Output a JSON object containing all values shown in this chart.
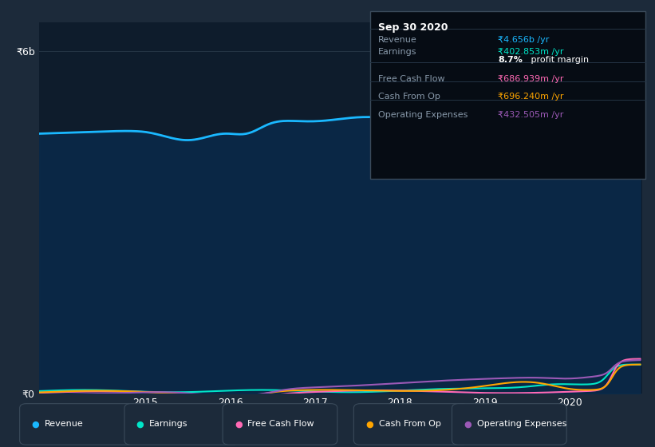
{
  "fig_bg_color": "#1c2a3a",
  "plot_bg_color": "#0e1c2c",
  "ylim": [
    0,
    6500000000
  ],
  "xlim_left": 2013.75,
  "xlim_right": 2020.85,
  "ytick_positions": [
    0,
    6000000000
  ],
  "ytick_labels": [
    "₹0",
    "₹6b"
  ],
  "xtick_positions": [
    2015,
    2016,
    2017,
    2018,
    2019,
    2020
  ],
  "xtick_labels": [
    "2015",
    "2016",
    "2017",
    "2018",
    "2019",
    "2020"
  ],
  "grid_color": "#243444",
  "revenue_color": "#1ab8ff",
  "earnings_color": "#00e5c8",
  "fcf_color": "#ff69b4",
  "cashfromop_color": "#ffa500",
  "opex_color": "#9b59b6",
  "revenue_fill_color": "#0a2a4a",
  "legend_bg": "#1c2a3a",
  "legend_border": "#3a4a5a",
  "info_box": {
    "title": "Sep 30 2020",
    "revenue_label": "Revenue",
    "revenue_value": "₹4.656b /yr",
    "revenue_color": "#1ab8ff",
    "earnings_label": "Earnings",
    "earnings_value": "₹402.853m /yr",
    "earnings_color": "#00e5c8",
    "margin_value": "8.7%",
    "margin_label": " profit margin",
    "fcf_label": "Free Cash Flow",
    "fcf_value": "₹686.939m /yr",
    "fcf_color": "#ff69b4",
    "cashop_label": "Cash From Op",
    "cashop_value": "₹696.240m /yr",
    "cashop_color": "#ffa500",
    "opex_label": "Operating Expenses",
    "opex_value": "₹432.505m /yr",
    "opex_color": "#9b59b6",
    "bg_color": "#060c14",
    "border_color": "#3a4a5a",
    "label_color": "#8899aa",
    "divider_color": "#243444"
  },
  "legend_items": [
    {
      "label": "Revenue",
      "color": "#1ab8ff"
    },
    {
      "label": "Earnings",
      "color": "#00e5c8"
    },
    {
      "label": "Free Cash Flow",
      "color": "#ff69b4"
    },
    {
      "label": "Cash From Op",
      "color": "#ffa500"
    },
    {
      "label": "Operating Expenses",
      "color": "#9b59b6"
    }
  ]
}
